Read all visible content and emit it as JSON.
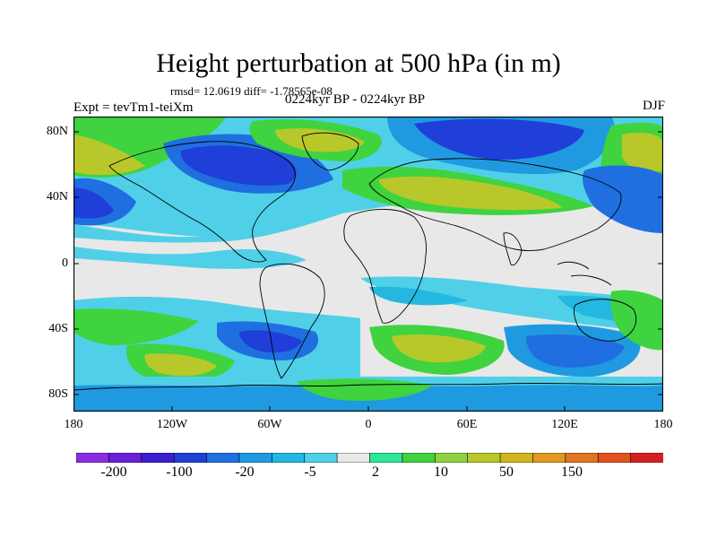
{
  "title": "Height perturbation at 500 hPa (in m)",
  "stats": "rmsd= 12.0619 diff= -1.78565e-08",
  "experiment": "Expt = tevTm1-teiXm",
  "period": "0224kyr BP - 0224kyr BP",
  "season": "DJF",
  "lat_labels": [
    "80N",
    "40N",
    "0",
    "40S",
    "80S"
  ],
  "lon_labels": [
    "180",
    "120W",
    "60W",
    "0",
    "60E",
    "120E",
    "180"
  ],
  "colorbar": {
    "colors": [
      "#8a2be2",
      "#6a1fd8",
      "#3a1fd0",
      "#1f3fd8",
      "#1f6fe0",
      "#1f9ae0",
      "#24b8e0",
      "#4fd0e8",
      "#e8e8e8",
      "#2ee59a",
      "#3fd33f",
      "#8ed23f",
      "#b8c82a",
      "#d0b51f",
      "#e09a1f",
      "#e0761f",
      "#e0531f",
      "#d81f1f"
    ],
    "labels": [
      "-200",
      "-100",
      "-20",
      "-5",
      "2",
      "10",
      "50",
      "150"
    ]
  },
  "legend_colors": {
    "land_outline": "#000000",
    "near_zero": "#e8e8e8"
  }
}
